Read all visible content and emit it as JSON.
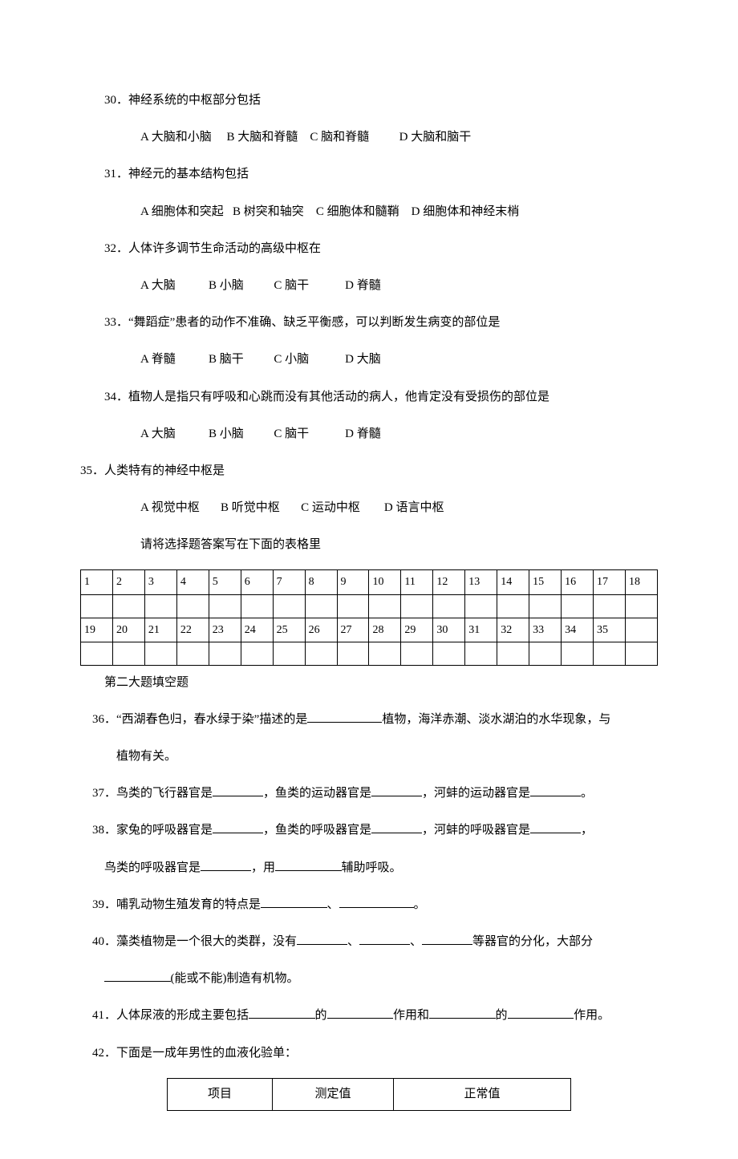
{
  "questions": [
    {
      "num": "30",
      "text": "神经系统的中枢部分包括",
      "options": {
        "A": "大脑和小脑",
        "B": "大脑和脊髓",
        "C": "脑和脊髓",
        "D": "大脑和脑干"
      }
    },
    {
      "num": "31",
      "text": "神经元的基本结构包括",
      "options": {
        "A": "细胞体和突起",
        "B": "树突和轴突",
        "C": "细胞体和髓鞘",
        "D": "细胞体和神经末梢"
      }
    },
    {
      "num": "32",
      "text": "人体许多调节生命活动的高级中枢在",
      "options": {
        "A": "大脑",
        "B": "小脑",
        "C": "脑干",
        "D": "脊髓"
      }
    },
    {
      "num": "33",
      "text": "“舞蹈症”患者的动作不准确、缺乏平衡感，可以判断发生病变的部位是",
      "options": {
        "A": "脊髓",
        "B": "脑干",
        "C": "小脑",
        "D": "大脑"
      }
    },
    {
      "num": "34",
      "text": "植物人是指只有呼吸和心跳而没有其他活动的病人，他肯定没有受损伤的部位是",
      "options": {
        "A": "大脑",
        "B": "小脑",
        "C": "脑干",
        "D": "脊髓"
      }
    },
    {
      "num": "35",
      "text": "人类特有的神经中枢是",
      "options": {
        "A": "视觉中枢",
        "B": "听觉中枢",
        "C": "运动中枢",
        "D": "语言中枢"
      }
    }
  ],
  "grid_note": "请将选择题答案写在下面的表格里",
  "grid": {
    "row1": [
      "1",
      "2",
      "3",
      "4",
      "5",
      "6",
      "7",
      "8",
      "9",
      "10",
      "11",
      "12",
      "13",
      "14",
      "15",
      "16",
      "17",
      "18"
    ],
    "row2": [
      "19",
      "20",
      "21",
      "22",
      "23",
      "24",
      "25",
      "26",
      "27",
      "28",
      "29",
      "30",
      "31",
      "32",
      "33",
      "34",
      "35",
      ""
    ]
  },
  "section2_title": "第二大题填空题",
  "fill": {
    "q36a": "36．“西湖春色归，春水绿于染”描述的是",
    "q36b": "植物，海洋赤潮、淡水湖泊的水华现象，与",
    "q36c": "植物有关。",
    "q37a": "37．鸟类的飞行器官是",
    "q37b": "，鱼类的运动器官是",
    "q37c": "，河蚌的运动器官是",
    "q37d": "。",
    "q38a": "38．家兔的呼吸器官是",
    "q38b": "，鱼类的呼吸器官是",
    "q38c": "，河蚌的呼吸器官是",
    "q38d": "，",
    "q38e": "鸟类的呼吸器官是",
    "q38f": "，用",
    "q38g": "辅助呼吸。",
    "q39a": "39．哺乳动物生殖发育的特点是",
    "q39b": "、",
    "q39c": "。",
    "q40a": "40．藻类植物是一个很大的类群，没有",
    "q40b": "、",
    "q40c": "、",
    "q40d": "等器官的分化，大部分",
    "q40e": "(能或不能)制造有机物。",
    "q41a": "41．人体尿液的形成主要包括",
    "q41b": "的",
    "q41c": "作用和",
    "q41d": "的",
    "q41e": "作用。",
    "q42a": "42．下面是一成年男性的血液化验单："
  },
  "assay": {
    "h1": "项目",
    "h2": "测定值",
    "h3": "正常值"
  },
  "colors": {
    "text": "#000000",
    "background": "#ffffff",
    "border": "#000000"
  }
}
